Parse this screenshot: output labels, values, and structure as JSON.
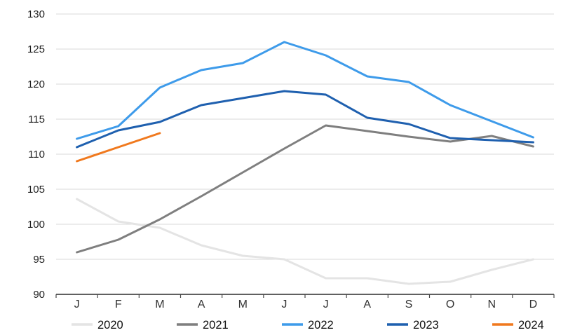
{
  "chart_data": {
    "type": "line",
    "title": "",
    "xlabel": "",
    "ylabel": "",
    "x": [
      "J",
      "F",
      "M",
      "A",
      "M",
      "J",
      "J",
      "A",
      "S",
      "O",
      "N",
      "D"
    ],
    "series": [
      {
        "name": "2020",
        "color": "#E4E4E4",
        "values": [
          103.6,
          100.4,
          99.5,
          97.0,
          95.5,
          95.0,
          92.3,
          92.3,
          91.5,
          91.8,
          93.5,
          95.0
        ]
      },
      {
        "name": "2021",
        "color": "#7F7F7F",
        "values": [
          96.0,
          97.8,
          100.7,
          104.0,
          107.4,
          110.8,
          114.1,
          113.3,
          112.5,
          111.8,
          112.6,
          111.1
        ]
      },
      {
        "name": "2022",
        "color": "#3E9BEA",
        "values": [
          112.2,
          114.0,
          119.5,
          122.0,
          123.0,
          126.0,
          124.1,
          121.1,
          120.3,
          117.0,
          114.7,
          112.4
        ]
      },
      {
        "name": "2023",
        "color": "#1F60AF",
        "values": [
          111.0,
          113.4,
          114.6,
          117.0,
          118.0,
          119.0,
          118.5,
          115.2,
          114.3,
          112.3,
          112.0,
          111.7
        ]
      },
      {
        "name": "2024",
        "color": "#F0791E",
        "values": [
          109.0,
          111.0,
          113.0
        ]
      }
    ],
    "ylim": [
      90,
      130
    ],
    "yticks": [
      90,
      95,
      100,
      105,
      110,
      115,
      120,
      125,
      130
    ],
    "grid": "horizontal",
    "grid_color": "#D9D9D9",
    "axis_color": "#4A4A4A",
    "tick_label_color": "#1F1F1F",
    "month_label_color": "#333333",
    "legend_text_color": "#111111",
    "legend_position": "bottom"
  }
}
